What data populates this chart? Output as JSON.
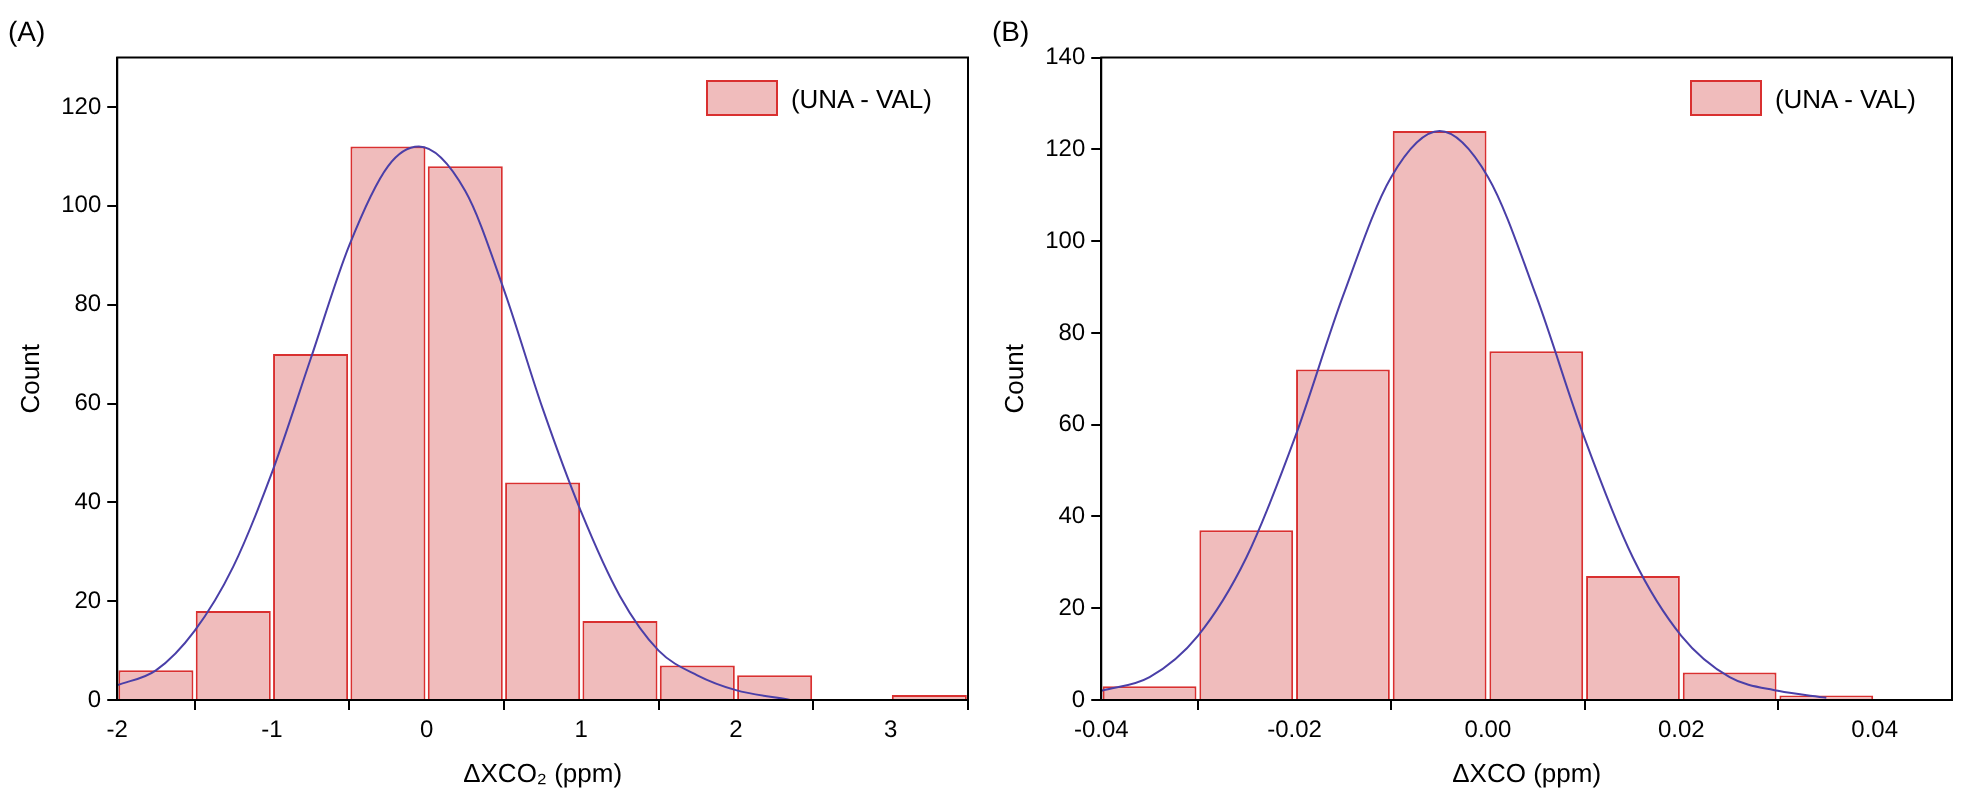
{
  "chart_data": [
    {
      "type": "histogram",
      "title": "(A)",
      "xlabel": "ΔXCO₂ (ppm)",
      "ylabel": "Count",
      "bins": [
        -2,
        -1.5,
        -1,
        -0.5,
        0,
        0.5,
        1,
        1.5,
        2,
        2.5,
        3,
        3.5
      ],
      "series": [
        {
          "name": "(UNA - VAL)",
          "color": "#f0bcbc",
          "values": [
            6,
            18,
            70,
            112,
            108,
            44,
            16,
            7,
            5,
            0,
            1
          ]
        },
        {
          "type": "line",
          "color": "#4a3fa8",
          "x": [
            -2,
            -1.75,
            -1.5,
            -1.25,
            -1,
            -0.75,
            -0.5,
            -0.25,
            -0.05,
            0.25,
            0.5,
            0.75,
            1,
            1.25,
            1.5,
            1.75,
            2,
            2.35
          ],
          "values": [
            3,
            6,
            14,
            27,
            46,
            69,
            92,
            108,
            112,
            103,
            83,
            59,
            38,
            21,
            10,
            5,
            2,
            0
          ]
        }
      ],
      "xlim": [
        -2,
        3.5
      ],
      "xticks": [
        -2,
        -1,
        0,
        1,
        2,
        3
      ],
      "ylim": [
        0,
        130
      ],
      "yticks": [
        0,
        20,
        40,
        60,
        80,
        100,
        120
      ],
      "grid": false,
      "legend": "top right",
      "marker": "none",
      "line_style": "solid"
    },
    {
      "type": "histogram",
      "title": "(B)",
      "xlabel": "ΔXCO (ppm)",
      "ylabel": "Count",
      "bins": [
        -0.04,
        -0.03,
        -0.02,
        -0.01,
        0,
        0.01,
        0.02,
        0.03,
        0.04
      ],
      "series": [
        {
          "name": "(UNA - VAL)",
          "color": "#f0bcbc",
          "values": [
            3,
            37,
            72,
            124,
            76,
            27,
            6,
            1
          ]
        },
        {
          "type": "line",
          "color": "#4a3fa8",
          "x": [
            -0.04,
            -0.035,
            -0.03,
            -0.025,
            -0.02,
            -0.015,
            -0.01,
            -0.005,
            0,
            0.005,
            0.01,
            0.015,
            0.02,
            0.025,
            0.03,
            0.035
          ],
          "values": [
            2,
            5,
            14,
            31,
            57,
            88,
            114,
            124,
            114,
            88,
            57,
            31,
            14,
            5,
            2,
            0.5
          ]
        }
      ],
      "xlim": [
        -0.04,
        0.048
      ],
      "xticks": [
        {
          "value": -0.04,
          "label": "-0.04"
        },
        {
          "value": -0.02,
          "label": "-0.02"
        },
        {
          "value": 0,
          "label": "0.00"
        },
        {
          "value": 0.02,
          "label": "0.02"
        },
        {
          "value": 0.04,
          "label": "0.04"
        }
      ],
      "ylim": [
        0,
        140
      ],
      "yticks": [
        0,
        20,
        40,
        60,
        80,
        100,
        120,
        140
      ],
      "grid": false,
      "legend": "top right",
      "marker": "none",
      "line_style": "solid"
    }
  ]
}
